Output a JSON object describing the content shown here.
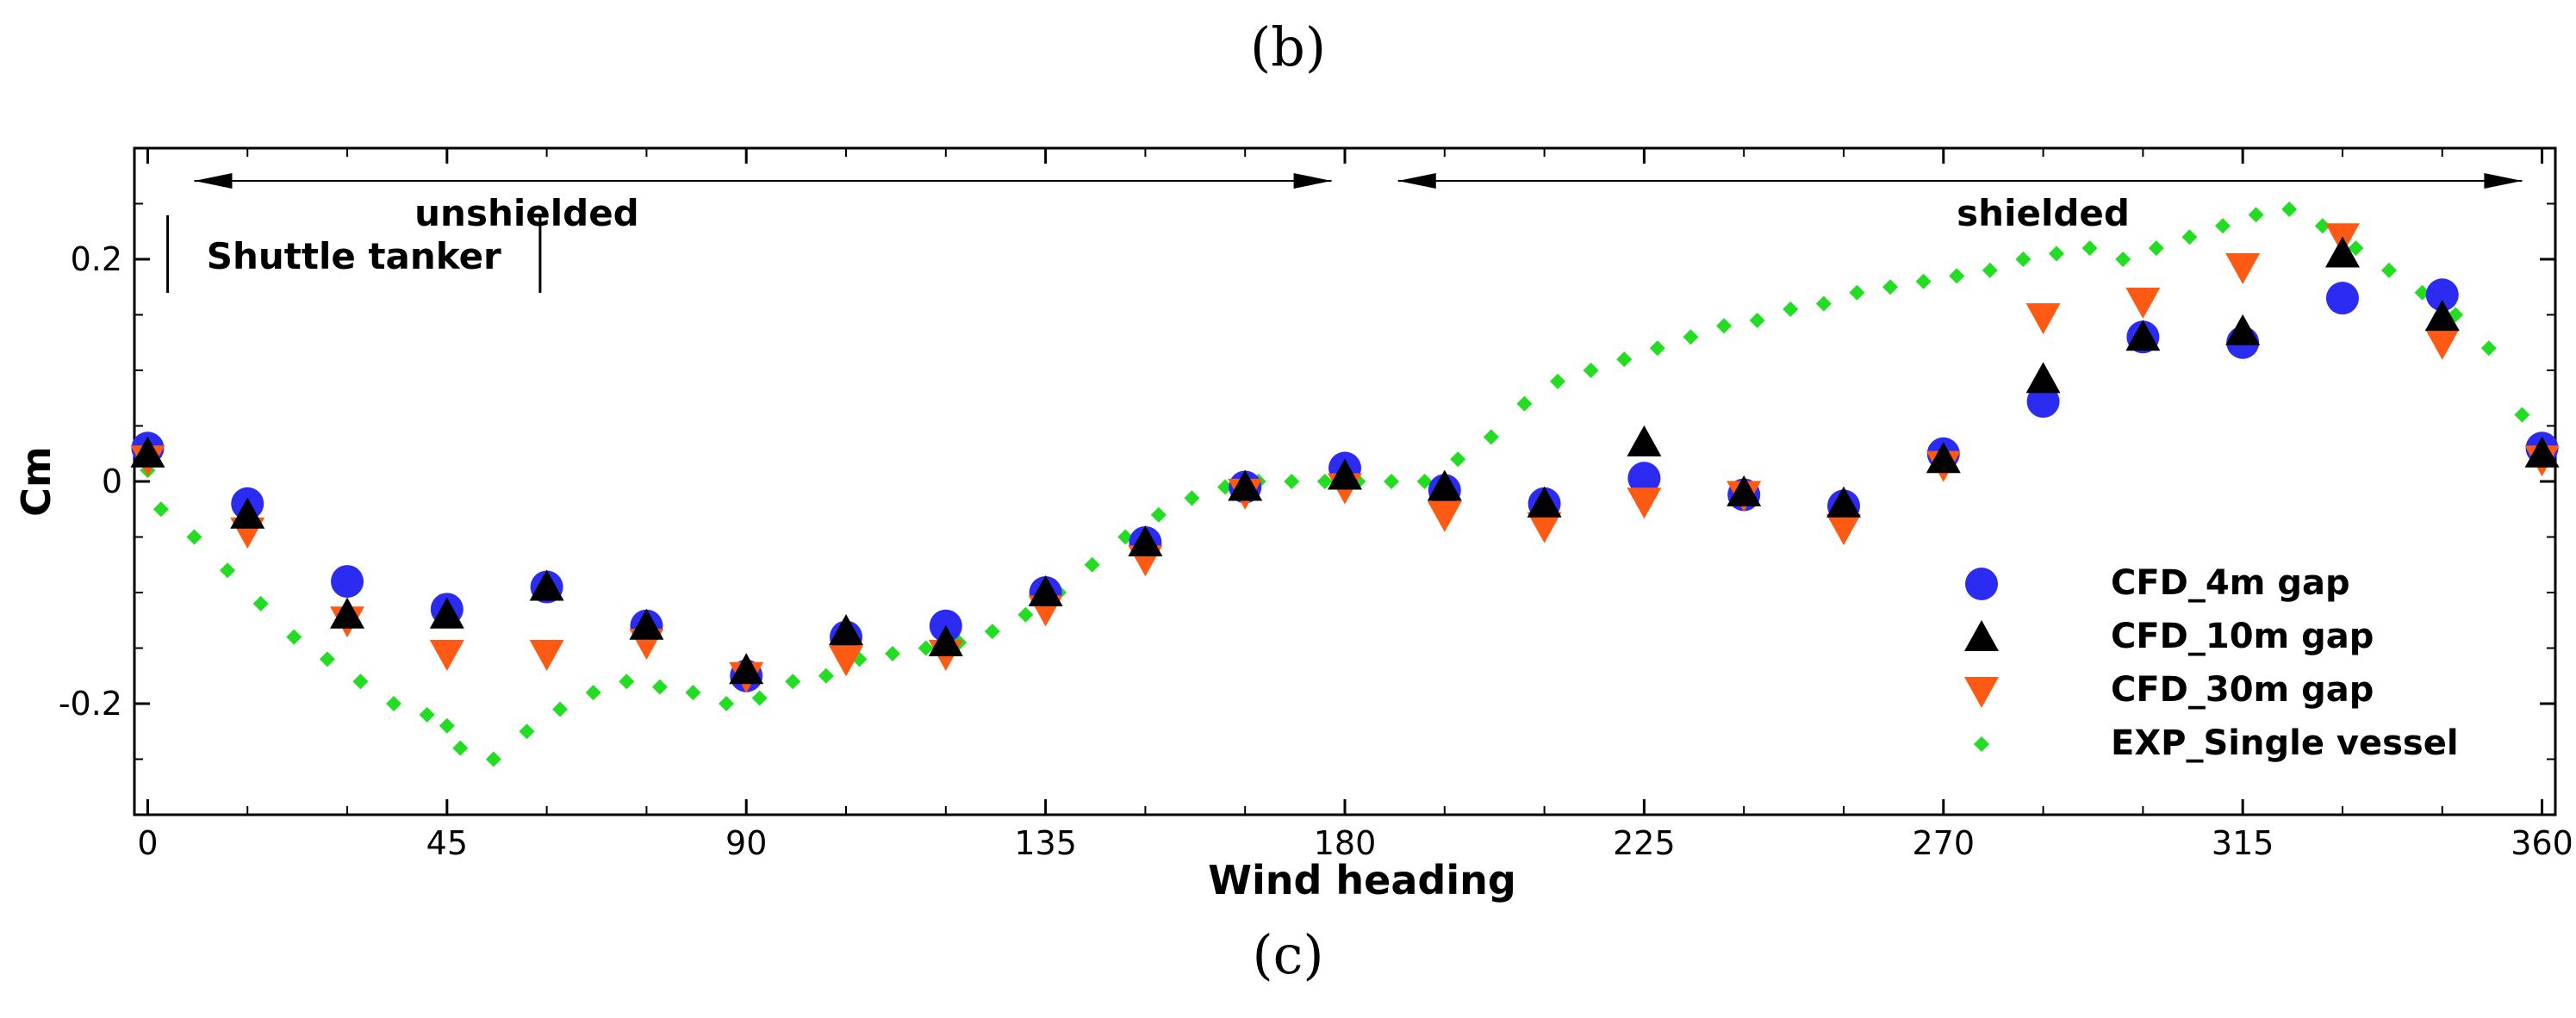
{
  "captions": {
    "top": "(b)",
    "bottom": "(c)"
  },
  "colors": {
    "cfd4": "#2b2bf2",
    "cfd10": "#000000",
    "cfd30": "#ff5a14",
    "exp": "#22dd22"
  },
  "chart_data": {
    "type": "scatter",
    "title": "",
    "xlabel": "Wind heading",
    "ylabel": "Cm",
    "xlim": [
      -2,
      362
    ],
    "ylim": [
      -0.3,
      0.3
    ],
    "xticks": [
      0,
      45,
      90,
      135,
      180,
      225,
      270,
      315,
      360
    ],
    "yticks": [
      -0.2,
      0,
      0.2
    ],
    "xtick_labels": [
      "0",
      "45",
      "90",
      "135",
      "180",
      "225",
      "270",
      "315",
      "360"
    ],
    "ytick_labels": [
      "-0.2",
      "0",
      "0.2"
    ],
    "legend_position": "lower-right",
    "annotations": {
      "unshielded": "unshielded",
      "shielded": "shielded",
      "shuttle_tanker": "Shuttle tanker",
      "unshielded_range": [
        7,
        178
      ],
      "shielded_range": [
        188,
        357
      ]
    },
    "series": [
      {
        "name": "CFD_4m gap",
        "marker": "circle",
        "x": [
          0,
          15,
          30,
          45,
          60,
          75,
          90,
          105,
          120,
          135,
          150,
          165,
          180,
          195,
          210,
          225,
          240,
          255,
          270,
          285,
          300,
          315,
          330,
          345,
          360
        ],
        "y": [
          0.03,
          -0.02,
          -0.09,
          -0.115,
          -0.095,
          -0.13,
          -0.175,
          -0.14,
          -0.13,
          -0.1,
          -0.055,
          -0.005,
          0.012,
          -0.008,
          -0.02,
          0.003,
          -0.012,
          -0.022,
          0.025,
          0.072,
          0.13,
          0.125,
          0.165,
          0.168,
          0.03
        ]
      },
      {
        "name": "CFD_10m gap",
        "marker": "triangle-up",
        "x": [
          0,
          15,
          30,
          45,
          60,
          75,
          90,
          105,
          120,
          135,
          150,
          165,
          180,
          195,
          210,
          225,
          240,
          255,
          270,
          285,
          300,
          315,
          330,
          345,
          360
        ],
        "y": [
          0.025,
          -0.03,
          -0.12,
          -0.12,
          -0.095,
          -0.13,
          -0.17,
          -0.135,
          -0.145,
          -0.1,
          -0.055,
          -0.005,
          0.005,
          -0.005,
          -0.02,
          0.035,
          -0.01,
          -0.02,
          0.02,
          0.092,
          0.13,
          0.135,
          0.205,
          0.148,
          0.025
        ]
      },
      {
        "name": "CFD_30m gap",
        "marker": "triangle-down",
        "x": [
          0,
          15,
          30,
          45,
          60,
          75,
          90,
          105,
          120,
          135,
          150,
          165,
          180,
          195,
          210,
          225,
          240,
          255,
          270,
          285,
          300,
          315,
          330,
          345,
          360
        ],
        "y": [
          0.02,
          -0.045,
          -0.125,
          -0.155,
          -0.155,
          -0.145,
          -0.175,
          -0.16,
          -0.155,
          -0.115,
          -0.07,
          -0.01,
          -0.005,
          -0.03,
          -0.04,
          -0.018,
          -0.012,
          -0.042,
          0.015,
          0.148,
          0.162,
          0.193,
          0.22,
          0.125,
          0.02
        ]
      },
      {
        "name": "EXP_Single vessel",
        "marker": "diamond",
        "x": [
          0,
          2,
          7,
          12,
          17,
          22,
          27,
          32,
          37,
          42,
          45,
          47,
          52,
          57,
          62,
          67,
          72,
          77,
          82,
          87,
          92,
          97,
          102,
          107,
          112,
          117,
          122,
          127,
          132,
          137,
          142,
          147,
          152,
          157,
          162,
          167,
          172,
          177,
          182,
          187,
          192,
          197,
          202,
          207,
          212,
          217,
          222,
          227,
          232,
          237,
          242,
          247,
          252,
          257,
          262,
          267,
          272,
          277,
          282,
          287,
          292,
          297,
          302,
          307,
          312,
          317,
          322,
          327,
          332,
          337,
          342,
          347,
          352,
          357,
          360
        ],
        "y": [
          0.01,
          -0.025,
          -0.05,
          -0.08,
          -0.11,
          -0.14,
          -0.16,
          -0.18,
          -0.2,
          -0.21,
          -0.22,
          -0.24,
          -0.25,
          -0.225,
          -0.205,
          -0.19,
          -0.18,
          -0.185,
          -0.19,
          -0.2,
          -0.195,
          -0.18,
          -0.175,
          -0.16,
          -0.155,
          -0.15,
          -0.145,
          -0.135,
          -0.12,
          -0.1,
          -0.075,
          -0.05,
          -0.03,
          -0.015,
          -0.005,
          0.0,
          0.0,
          0.0,
          0.0,
          0.0,
          0.0,
          0.02,
          0.04,
          0.07,
          0.09,
          0.1,
          0.11,
          0.12,
          0.13,
          0.14,
          0.145,
          0.155,
          0.16,
          0.17,
          0.175,
          0.18,
          0.185,
          0.19,
          0.2,
          0.205,
          0.21,
          0.2,
          0.21,
          0.22,
          0.23,
          0.24,
          0.245,
          0.23,
          0.21,
          0.19,
          0.17,
          0.15,
          0.12,
          0.06,
          0.03
        ]
      }
    ]
  }
}
